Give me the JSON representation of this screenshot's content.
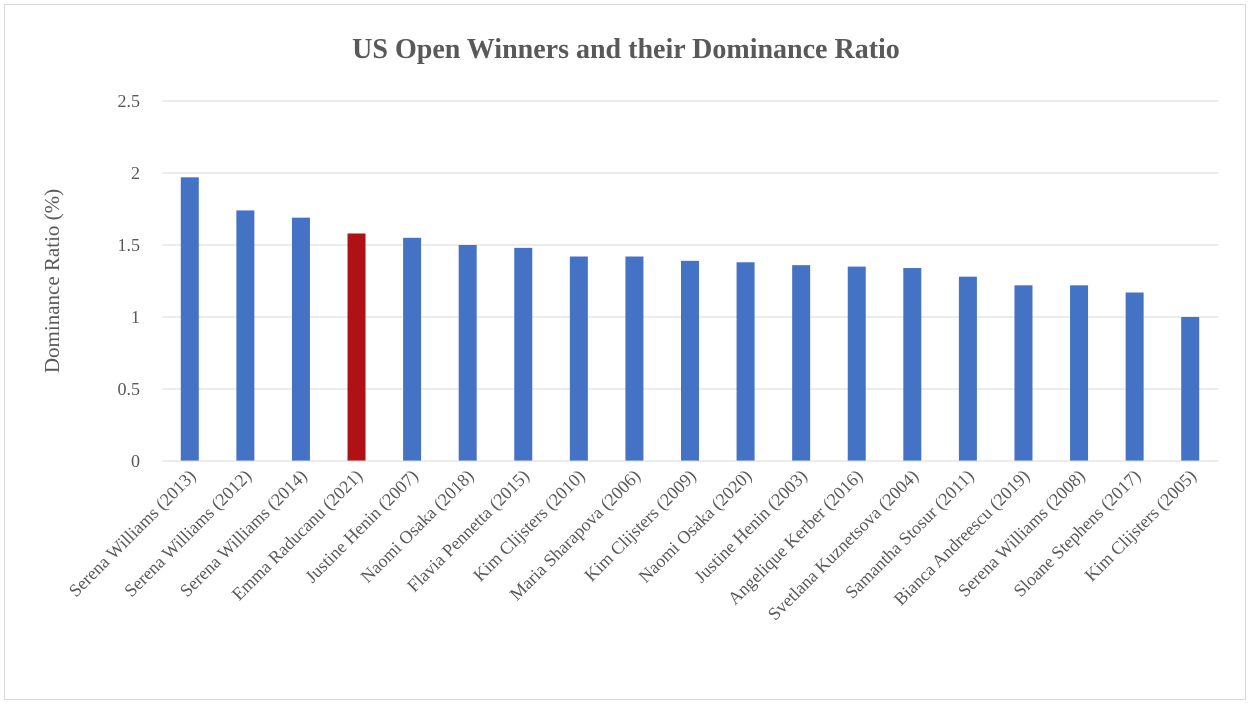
{
  "chart_data": {
    "type": "bar",
    "title": "US Open Winners  and their Dominance Ratio",
    "ylabel": "Dominance Ratio (%)",
    "xlabel": "",
    "ylim": [
      0,
      2.5
    ],
    "yticks": [
      "0",
      "0.5",
      "1",
      "1.5",
      "2",
      "2.5"
    ],
    "grid": true,
    "categories": [
      "Serena Williams (2013)",
      "Serena Williams (2012)",
      "Serena Williams (2014)",
      "Emma Raducanu (2021)",
      "Justine Henin (2007)",
      "Naomi Osaka (2018)",
      "Flavia Pennetta (2015)",
      "Kim Clijsters (2010)",
      "Maria Sharapova (2006)",
      "Kim Clijsters (2009)",
      "Naomi Osaka (2020)",
      "Justine Henin (2003)",
      "Angelique Kerber (2016)",
      "Svetlana Kuznetsova (2004)",
      "Samantha Stosur (2011)",
      "Bianca Andreescu (2019)",
      "Serena Williams (2008)",
      "Sloane Stephens (2017)",
      "Kim Clijsters (2005)"
    ],
    "values": [
      1.97,
      1.74,
      1.69,
      1.58,
      1.55,
      1.5,
      1.48,
      1.42,
      1.42,
      1.39,
      1.38,
      1.36,
      1.35,
      1.34,
      1.28,
      1.22,
      1.22,
      1.17,
      1.0
    ],
    "colors": {
      "default": "#4472C4",
      "highlight": "#B01116"
    },
    "highlight_index": 3
  }
}
